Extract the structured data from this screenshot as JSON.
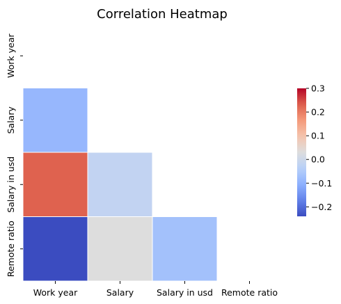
{
  "chart_data": {
    "type": "heatmap",
    "title": "Correlation Heatmap",
    "rows": [
      "Work year",
      "Salary",
      "Salary in usd",
      "Remote ratio"
    ],
    "columns": [
      "Work year",
      "Salary",
      "Salary in usd",
      "Remote ratio"
    ],
    "mask": "upper-triangle-including-diagonal",
    "cells": [
      {
        "row": "Salary",
        "column": "Work year",
        "value": -0.09
      },
      {
        "row": "Salary in usd",
        "column": "Work year",
        "value": 0.23
      },
      {
        "row": "Salary in usd",
        "column": "Salary",
        "value": -0.02
      },
      {
        "row": "Remote ratio",
        "column": "Work year",
        "value": -0.24
      },
      {
        "row": "Remote ratio",
        "column": "Salary",
        "value": 0.03
      },
      {
        "row": "Remote ratio",
        "column": "Salary in usd",
        "value": -0.07
      }
    ],
    "colorbar": {
      "min": -0.24,
      "max": 0.3,
      "ticks": [
        "0.3",
        "0.2",
        "0.1",
        "0.0",
        "−0.1",
        "−0.2"
      ],
      "tick_values": [
        0.3,
        0.2,
        0.1,
        0.0,
        -0.1,
        -0.2
      ],
      "colormap": "coolwarm"
    },
    "colors": {
      "low": "#3b4cc0",
      "mid": "#dddddd",
      "high": "#b40426",
      "cell_border": "#ffffff"
    }
  }
}
